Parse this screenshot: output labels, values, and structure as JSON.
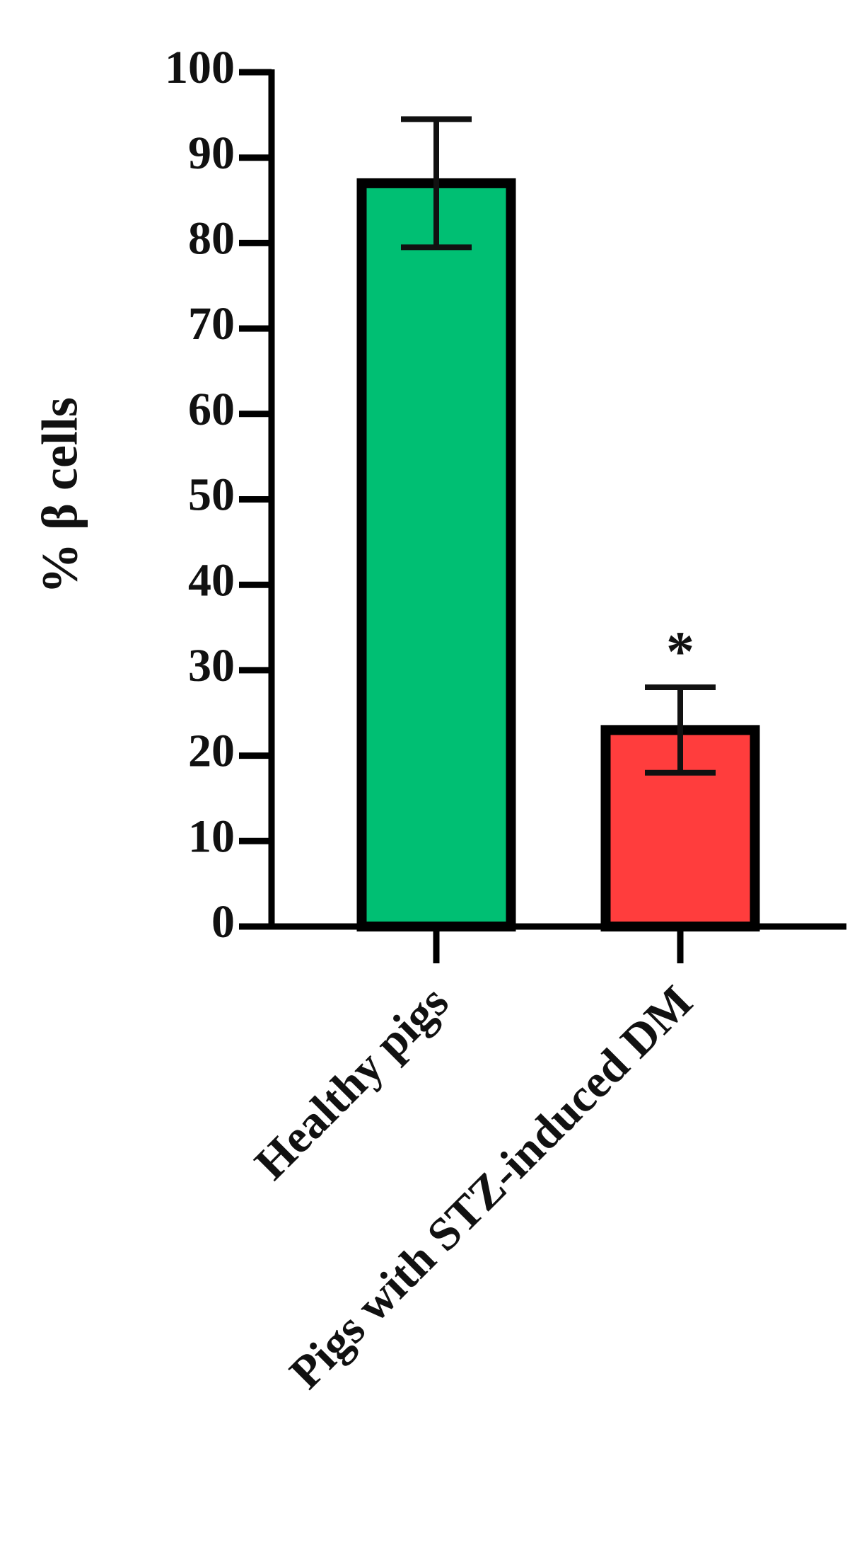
{
  "chart_data": {
    "type": "bar",
    "y_label": "% β cells",
    "categories": [
      "Healthy pigs",
      "Pigs with STZ-induced DM"
    ],
    "values": [
      87,
      23
    ],
    "errors": [
      7.5,
      5
    ],
    "colors": [
      "#00bf73",
      "#ff3d3d"
    ],
    "annotations": [
      null,
      "*"
    ],
    "ylim": [
      0,
      100
    ],
    "yticks": [
      0,
      10,
      20,
      30,
      40,
      50,
      60,
      70,
      80,
      90,
      100
    ]
  }
}
